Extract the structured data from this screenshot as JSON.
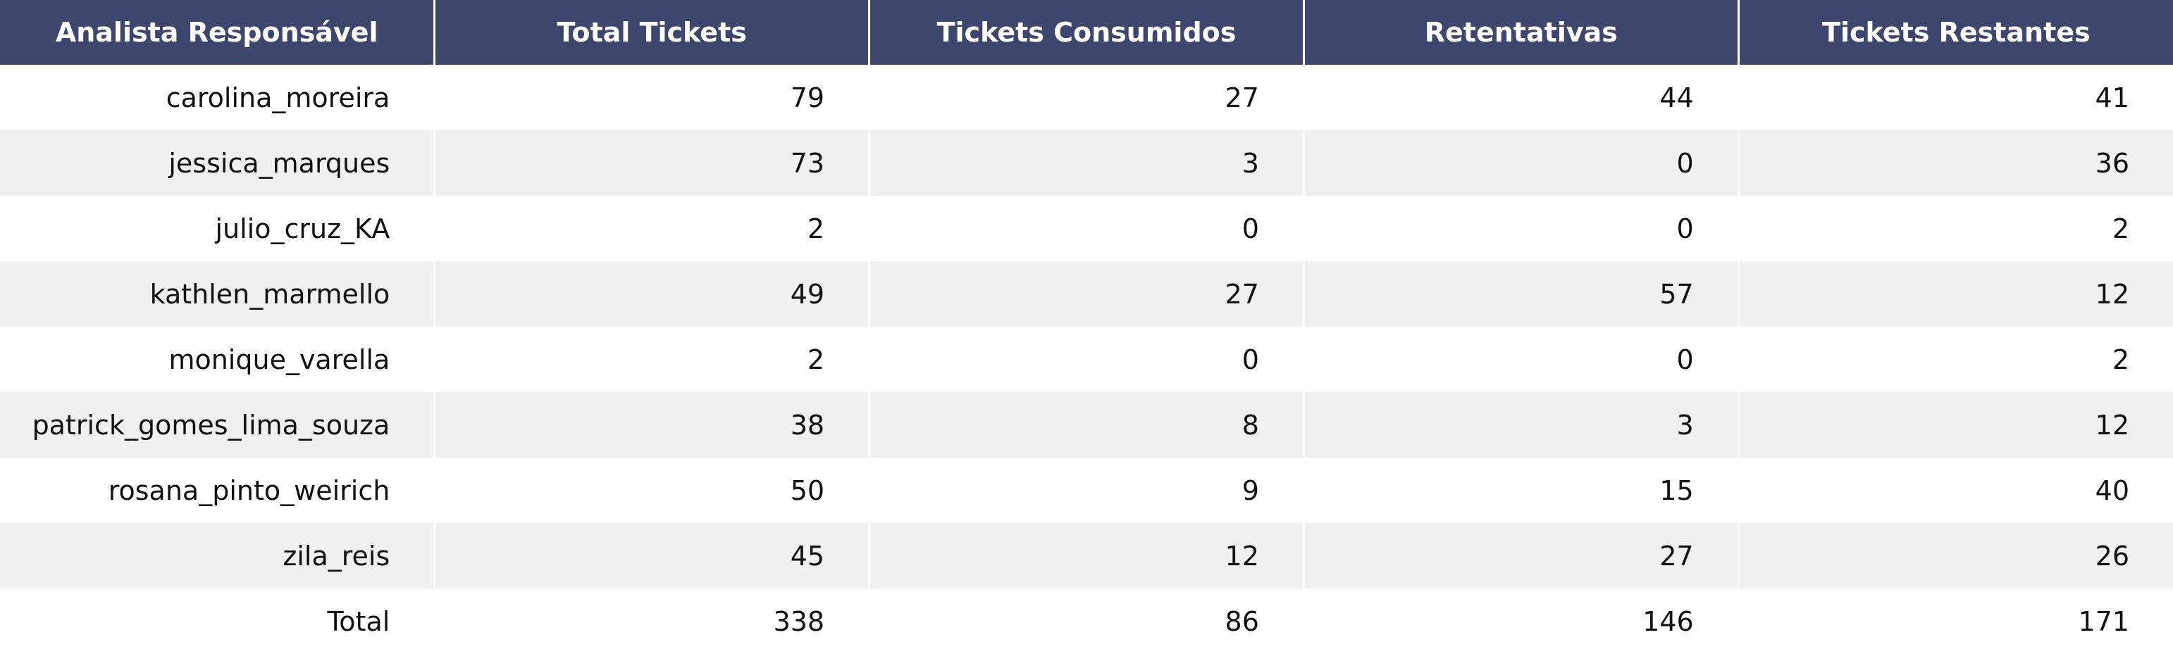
{
  "chart_data": {
    "type": "table",
    "columns": [
      "Analista Responsável",
      "Total Tickets",
      "Tickets Consumidos",
      "Retentativas",
      "Tickets Restantes"
    ],
    "rows": [
      [
        "carolina_moreira",
        "79",
        "27",
        "44",
        "41"
      ],
      [
        "jessica_marques",
        "73",
        "3",
        "0",
        "36"
      ],
      [
        "julio_cruz_KA",
        "2",
        "0",
        "0",
        "2"
      ],
      [
        "kathlen_marmello",
        "49",
        "27",
        "57",
        "12"
      ],
      [
        "monique_varella",
        "2",
        "0",
        "0",
        "2"
      ],
      [
        "patrick_gomes_lima_souza",
        "38",
        "8",
        "3",
        "12"
      ],
      [
        "rosana_pinto_weirich",
        "50",
        "9",
        "15",
        "40"
      ],
      [
        "zila_reis",
        "45",
        "12",
        "27",
        "26"
      ],
      [
        "Total",
        "338",
        "86",
        "146",
        "171"
      ]
    ],
    "header_color": "#3f466d",
    "header_text_color": "#ffffff",
    "stripe_color": "#f0f0f0"
  }
}
